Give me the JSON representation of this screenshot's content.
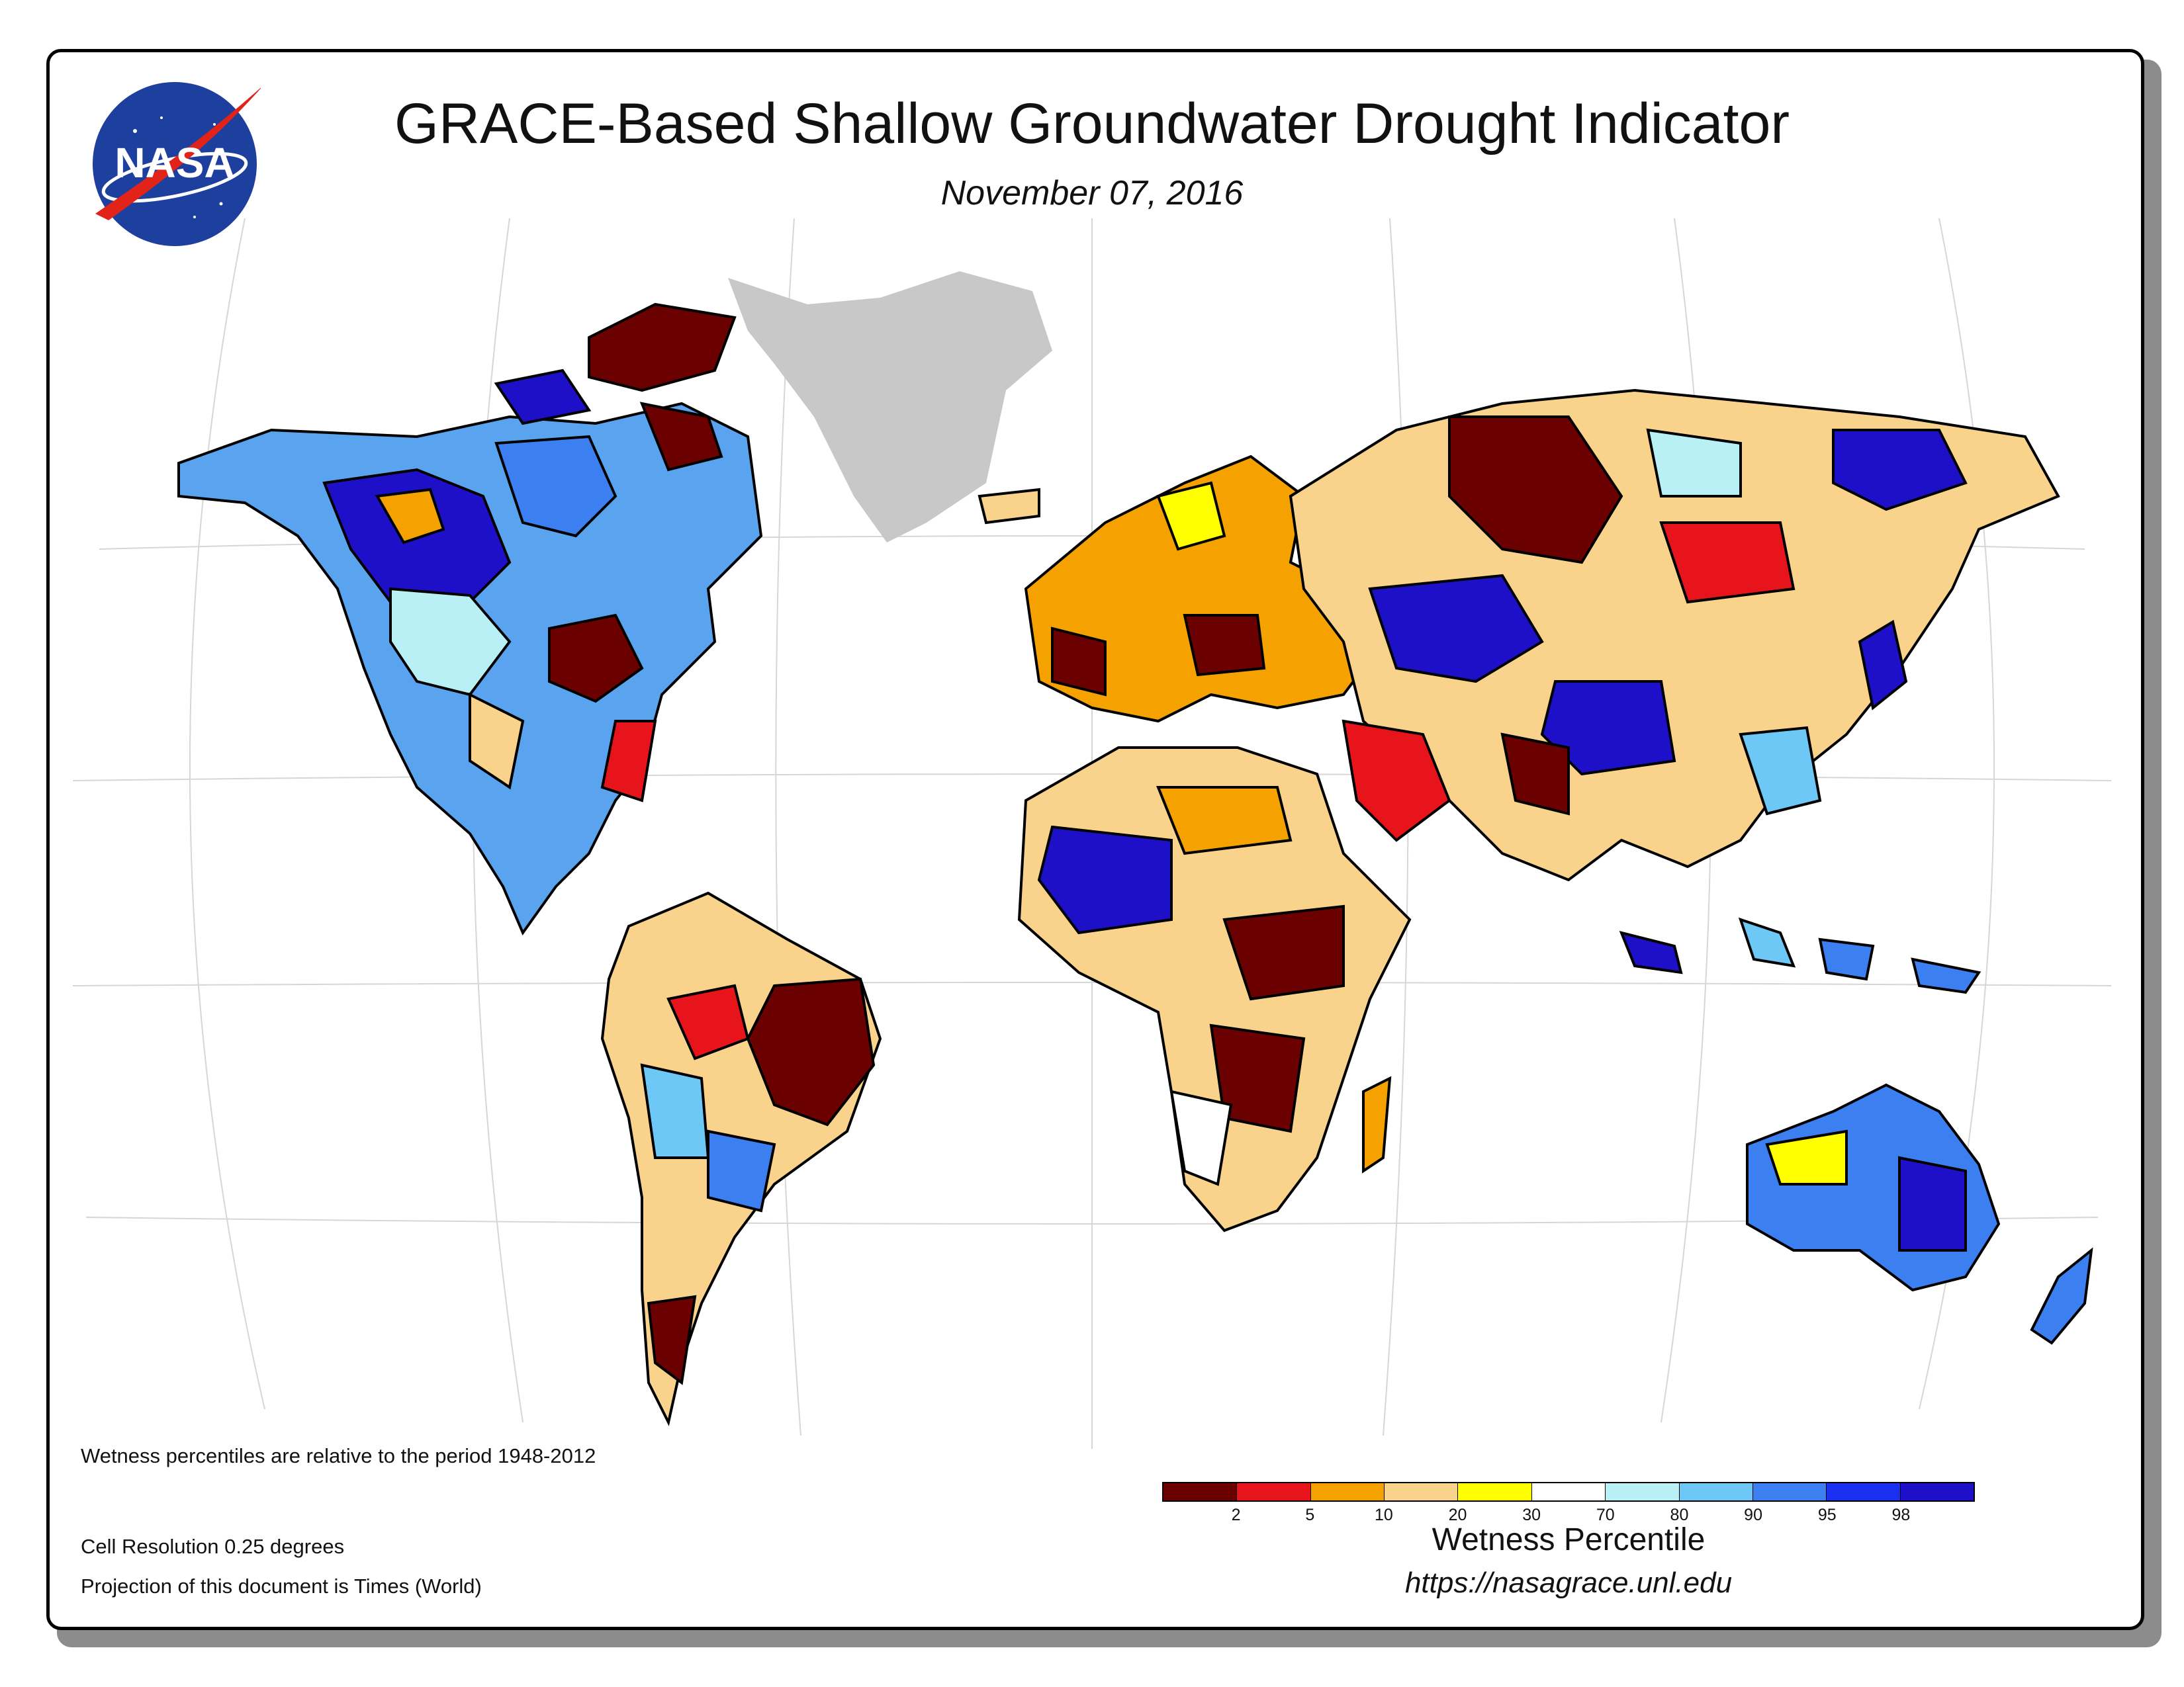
{
  "title": "GRACE-Based Shallow Groundwater Drought Indicator",
  "date": "November 07, 2016",
  "logo_text": "NASA",
  "notes": {
    "baseline": "Wetness percentiles are relative to the period 1948-2012",
    "resolution": "Cell Resolution 0.25 degrees",
    "projection": "Projection of this document is Times (World)"
  },
  "legend": {
    "title": "Wetness Percentile",
    "tick_labels": [
      "2",
      "5",
      "10",
      "20",
      "30",
      "70",
      "80",
      "90",
      "95",
      "98"
    ],
    "colors": [
      "#6b0000",
      "#e8141c",
      "#f5a200",
      "#f9d38c",
      "#ffff00",
      "#ffffff",
      "#b8f0f5",
      "#6dc8f5",
      "#3b7ff0",
      "#1a2ff0",
      "#1d10c8"
    ]
  },
  "url": "https://nasagrace.unl.edu",
  "colors": {
    "greenland": "#c8c8c8",
    "graticule": "#d6d6d6",
    "border": "#000000"
  }
}
